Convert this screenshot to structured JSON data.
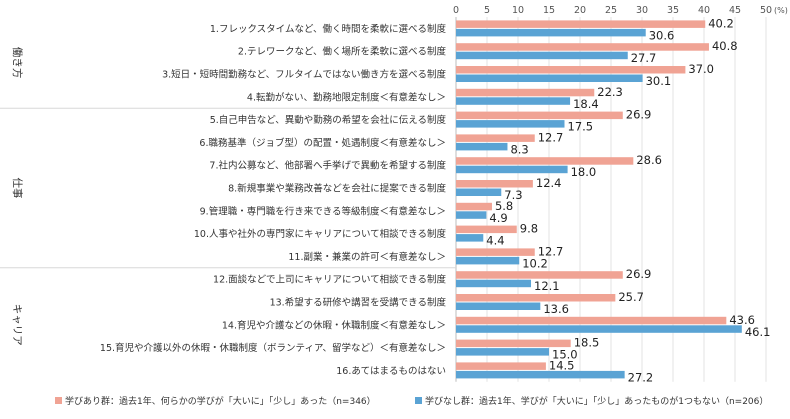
{
  "chart_data": {
    "type": "bar",
    "orientation": "horizontal",
    "unit_label": "(%)",
    "xlim": [
      0,
      50
    ],
    "xticks": [
      0,
      5,
      10,
      15,
      20,
      25,
      30,
      35,
      40,
      45,
      50
    ],
    "grid": true,
    "groups": [
      {
        "name": "働き方",
        "start": 0,
        "end": 3
      },
      {
        "name": "仕事",
        "start": 4,
        "end": 10
      },
      {
        "name": "キャリア",
        "start": 11,
        "end": 15
      }
    ],
    "categories": [
      "1.フレックスタイムなど、働く時間を柔軟に選べる制度",
      "2.テレワークなど、働く場所を柔軟に選べる制度",
      "3.短日・短時間勤務など、フルタイムではない働き方を選べる制度",
      "4.転勤がない、勤務地限定制度＜有意差なし＞",
      "5.自己申告など、異動や勤務の希望を会社に伝える制度",
      "6.職務基準（ジョブ型）の配置・処遇制度＜有意差なし＞",
      "7.社内公募など、他部署へ手挙げで異動を希望する制度",
      "8.新規事業や業務改善などを会社に提案できる制度",
      "9.管理職・専門職を行き来できる等級制度＜有意差なし＞",
      "10.人事や社外の専門家にキャリアについて相談できる制度",
      "11.副業・兼業の許可＜有意差なし＞",
      "12.面談などで上司にキャリアについて相談できる制度",
      "13.希望する研修や講習を受講できる制度",
      "14.育児や介護などの休暇・休職制度＜有意差なし＞",
      "15.育児や介護以外の休暇・休職制度（ボランティア、留学など）＜有意差なし＞",
      "16.あてはまるものはない"
    ],
    "series": [
      {
        "name": "学びあり群：過去1年、何らかの学びが「大いに」「少し」あった（n=346）",
        "color": "#f0a394",
        "values": [
          40.2,
          40.8,
          37.0,
          22.3,
          26.9,
          12.7,
          28.6,
          12.4,
          5.8,
          9.8,
          12.7,
          26.9,
          25.7,
          43.6,
          18.5,
          14.5
        ]
      },
      {
        "name": "学びなし群：過去1年、学びが「大いに」「少し」あったものが1つもない（n=206）",
        "color": "#5aa3d4",
        "values": [
          30.6,
          27.7,
          30.1,
          18.4,
          17.5,
          8.3,
          18.0,
          7.3,
          4.9,
          4.4,
          10.2,
          12.1,
          13.6,
          46.1,
          15.0,
          27.2
        ]
      }
    ]
  }
}
